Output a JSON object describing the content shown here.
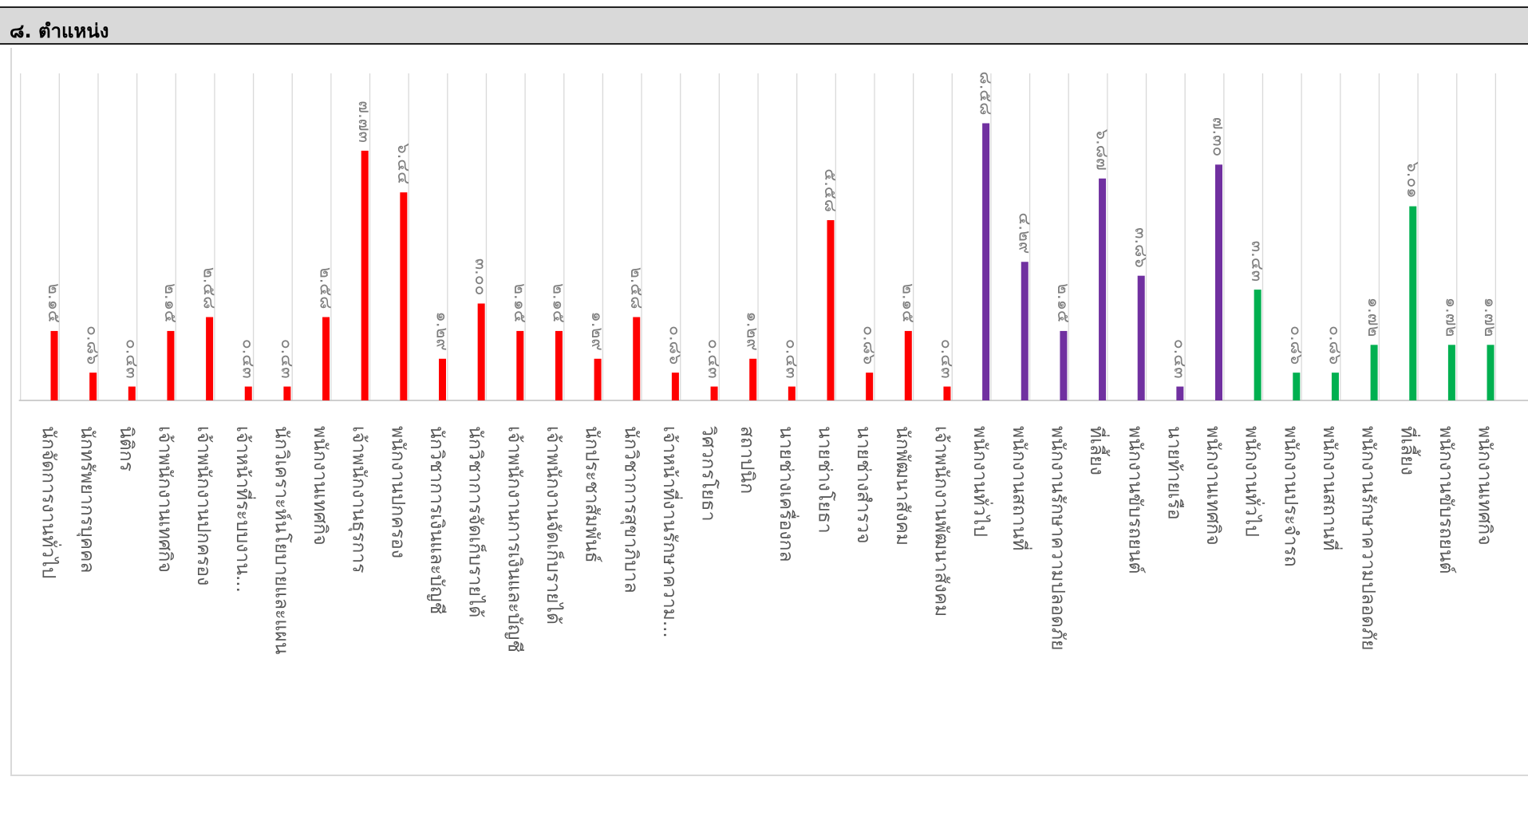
{
  "header": {
    "title": "๘. ตำแหน่ง"
  },
  "colors": {
    "red": "#ff0000",
    "purple": "#7030a0",
    "green": "#00b050",
    "grid": "#d9d9d9",
    "axis": "#bfbfbf"
  },
  "chart_data": {
    "type": "bar",
    "title": "",
    "xlabel": "",
    "ylabel": "",
    "ylim": [
      0,
      9.5
    ],
    "grid": true,
    "categories": [
      "นักจัดการงานทั่วไป",
      "นักทรัพยากรบุคคล",
      "นิติกร",
      "เจ้าพนักงานเทศกิจ",
      "เจ้าพนักงานปกครอง",
      "เจ้าหน้าที่ระบบงาน...",
      "นักวิเคราะห์นโยบายและแผน",
      "พนักงานเทศกิจ",
      "เจ้าพนักงานธุรการ",
      "พนักงานปกครอง",
      "นักวิชาการเงินและบัญชี",
      "นักวิชาการจัดเก็บรายได้",
      "เจ้าพนักงานการเงินและบัญชี",
      "เจ้าพนักงานจัดเก็บรายได้",
      "นักประชาสัมพันธ์",
      "นักวิชาการสุขาภิบาล",
      "เจ้าหน้าที่งานรักษาความ...",
      "วิศวกรโยธา",
      "สถาปนิก",
      "นายช่างเครื่องกล",
      "นายช่างโยธา",
      "นายช่างสำรวจ",
      "นักพัฒนาสังคม",
      "เจ้าพนักงานพัฒนาสังคม",
      "พนักงานทั่วไป",
      "พนักงานสถานที่",
      "พนักงานรักษาความปลอดภัย",
      "ที่เลี้ยง",
      "พนักงานขับรถยนต์",
      "นายท้ายเรือ",
      "พนักงานเทศกิจ",
      "พนักงานทั่วไป",
      "พนักงานประจำรถ",
      "พนักงานสถานที่",
      "พนักงานรักษาความปลอดภัย",
      "ที่เลี้ยง",
      "พนักงานขับรถยนต์",
      "พนักงานเทศกิจ"
    ],
    "values": [
      2.15,
      0.86,
      0.43,
      2.15,
      2.58,
      0.43,
      0.43,
      2.58,
      7.73,
      6.44,
      1.29,
      3.0,
      2.15,
      2.15,
      1.29,
      2.58,
      0.86,
      0.43,
      1.29,
      0.43,
      5.58,
      0.86,
      2.15,
      0.43,
      8.58,
      4.29,
      2.15,
      6.87,
      3.86,
      0.43,
      7.3,
      3.43,
      0.86,
      0.86,
      1.72,
      6.01,
      1.72,
      1.72
    ],
    "value_labels": [
      "๒.๑๕",
      "๐.๘๖",
      "๐.๔๓",
      "๒.๑๕",
      "๒.๕๘",
      "๐.๔๓",
      "๐.๔๓",
      "๒.๕๘",
      "๗.๗๓",
      "๖.๔๔",
      "๑.๒๙",
      "๓.๐๐",
      "๒.๑๕",
      "๒.๑๕",
      "๑.๒๙",
      "๒.๕๘",
      "๐.๘๖",
      "๐.๔๓",
      "๑.๒๙",
      "๐.๔๓",
      "๕.๕๘",
      "๐.๘๖",
      "๒.๑๕",
      "๐.๔๓",
      "๘.๕๘",
      "๔.๒๙",
      "๒.๑๕",
      "๖.๘๗",
      "๓.๘๖",
      "๐.๔๓",
      "๗.๓๐",
      "๓.๔๓",
      "๐.๘๖",
      "๐.๘๖",
      "๑.๗๒",
      "๖.๐๑",
      "๑.๗๒",
      "๑.๗๒"
    ],
    "bar_colors": [
      "red",
      "red",
      "red",
      "red",
      "red",
      "red",
      "red",
      "red",
      "red",
      "red",
      "red",
      "red",
      "red",
      "red",
      "red",
      "red",
      "red",
      "red",
      "red",
      "red",
      "red",
      "red",
      "red",
      "red",
      "purple",
      "purple",
      "purple",
      "purple",
      "purple",
      "purple",
      "purple",
      "green",
      "green",
      "green",
      "green",
      "green",
      "green",
      "green"
    ]
  }
}
